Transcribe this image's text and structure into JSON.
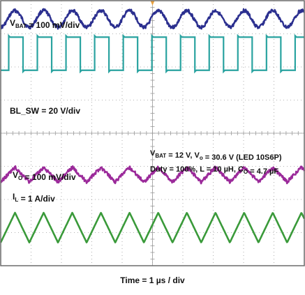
{
  "chart_data": {
    "type": "line",
    "title": "",
    "xlabel": "Time = 1 µs / div",
    "grid": true,
    "x_divisions": 10,
    "y_divisions": 8,
    "series": [
      {
        "name": "V_BAT",
        "label_main": "V",
        "label_sub": "BAT",
        "label_rest": " = 100 mV/div",
        "color": "#2b2f8f",
        "shape": "sine",
        "cycles": 10.6,
        "amplitude_div": 0.25,
        "center_div": 7.45,
        "noise": true
      },
      {
        "name": "BL_SW",
        "label_main": "BL_SW = 20 V/div",
        "label_sub": "",
        "label_rest": "",
        "color": "#2aa3a0",
        "shape": "square",
        "cycles": 10.6,
        "high_div": 6.9,
        "low_div": 5.9,
        "duty_note": "square switching node"
      },
      {
        "name": "V_O",
        "label_main": "V",
        "label_sub": "O",
        "label_rest": " = 100 mV/div",
        "color": "#9b2a9a",
        "shape": "triangle",
        "cycles": 10.6,
        "amplitude_div": 0.22,
        "center_div": 2.75,
        "noise": true
      },
      {
        "name": "I_L",
        "label_main": "I",
        "label_sub": "L",
        "label_rest": " = 1 A/div",
        "color": "#3a9a3a",
        "shape": "triangle",
        "cycles": 10.6,
        "amplitude_div": 0.45,
        "center_div": 1.15,
        "noise": false
      }
    ],
    "annotations": [
      {
        "id": "conditions_line1",
        "parts": [
          {
            "t": "V"
          },
          {
            "t": "BAT",
            "sub": true
          },
          {
            "t": " = 12 V, V"
          },
          {
            "t": "o",
            "sub": true
          },
          {
            "t": " = 30.6 V (LED 10S6P)"
          }
        ]
      },
      {
        "id": "conditions_line2",
        "parts": [
          {
            "t": "Duty = 100%, L = 10 µH, C"
          },
          {
            "t": "O",
            "sub": true
          },
          {
            "t": " = 4.7 µF"
          }
        ]
      }
    ]
  },
  "colors": {
    "grid": "#9a9a9a",
    "frame": "#6a6a6a",
    "trigger_marker": "#e8a040",
    "background": "#ffffff"
  }
}
